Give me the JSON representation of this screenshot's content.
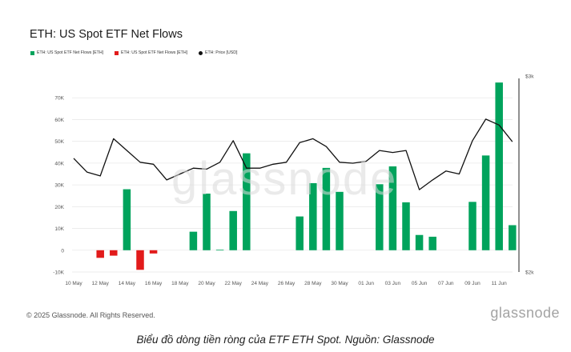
{
  "header": {
    "title": "ETH: US Spot ETF Net Flows"
  },
  "legend": [
    {
      "label": "ETH: US Spot ETF Net Flows [ETH]",
      "color": "#00a35c"
    },
    {
      "label": "ETH: US Spot ETF Net Flows [ETH]",
      "color": "#e21b1b"
    },
    {
      "label": "ETH: Price [USD]",
      "color": "#111111"
    }
  ],
  "footer": {
    "copyright": "© 2025 Glassnode. All Rights Reserved.",
    "logo": "glassnode",
    "watermark": "glassnode"
  },
  "caption": "Biểu đồ dòng tiền ròng của ETF ETH Spot. Nguồn: Glassnode",
  "chart_data": {
    "type": "bar",
    "x_tick_labels": [
      "10 May",
      "12 May",
      "14 May",
      "16 May",
      "18 May",
      "20 May",
      "22 May",
      "24 May",
      "26 May",
      "28 May",
      "30 May",
      "01 Jun",
      "03 Jun",
      "05 Jun",
      "07 Jun",
      "09 Jun",
      "11 Jun"
    ],
    "x": [
      "10 May",
      "11 May",
      "12 May",
      "13 May",
      "14 May",
      "15 May",
      "16 May",
      "17 May",
      "18 May",
      "19 May",
      "20 May",
      "21 May",
      "22 May",
      "23 May",
      "24 May",
      "25 May",
      "26 May",
      "27 May",
      "28 May",
      "29 May",
      "30 May",
      "31 May",
      "01 Jun",
      "02 Jun",
      "03 Jun",
      "04 Jun",
      "05 Jun",
      "06 Jun",
      "07 Jun",
      "08 Jun",
      "09 Jun",
      "10 Jun",
      "11 Jun",
      "12 Jun"
    ],
    "series": [
      {
        "type": "bar",
        "unit": "ETH",
        "values": [
          0,
          0,
          -3500,
          -2500,
          28000,
          -9000,
          -1500,
          0,
          0,
          8500,
          26000,
          200,
          18000,
          44500,
          0,
          0,
          0,
          15500,
          30800,
          37800,
          26800,
          0,
          0,
          30300,
          38500,
          22000,
          7000,
          6200,
          0,
          0,
          22200,
          43500,
          77000,
          11500
        ]
      },
      {
        "name": "ETH: Price [USD]",
        "type": "line",
        "unit": "USD",
        "values": [
          2580,
          2510,
          2490,
          2680,
          2620,
          2560,
          2550,
          2470,
          2500,
          2530,
          2525,
          2560,
          2670,
          2530,
          2530,
          2550,
          2560,
          2660,
          2680,
          2640,
          2560,
          2555,
          2565,
          2620,
          2610,
          2620,
          2420,
          2470,
          2515,
          2500,
          2670,
          2780,
          2750,
          2665
        ]
      }
    ],
    "y_left": {
      "ticks": [
        "-10K",
        "0",
        "10K",
        "20K",
        "30K",
        "40K",
        "50K",
        "60K",
        "70K"
      ],
      "ylim": [
        -10000,
        80000
      ]
    },
    "y_right": {
      "ticks": [
        "$2k",
        "$3k"
      ],
      "ylim": [
        2000,
        3000
      ]
    },
    "grid": true
  }
}
